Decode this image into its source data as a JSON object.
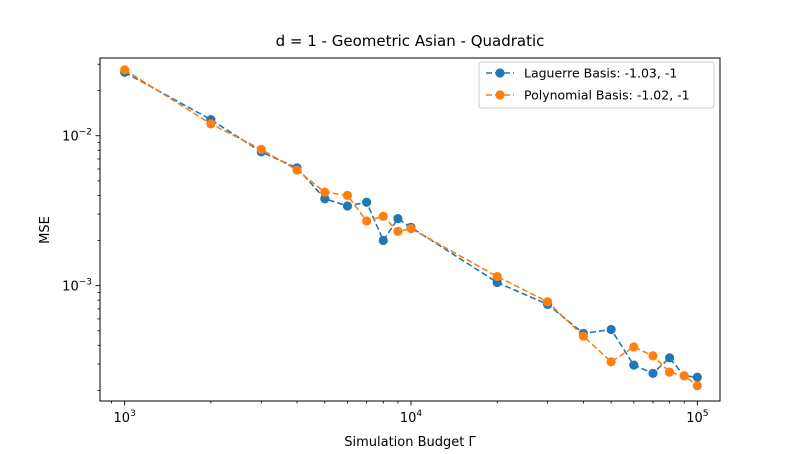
{
  "chart_data": {
    "type": "line",
    "title": "d = 1 - Geometric Asian - Quadratic",
    "xlabel": "Simulation Budget Γ",
    "ylabel": "MSE",
    "xscale": "log",
    "yscale": "log",
    "xlim": [
      820,
      120000
    ],
    "ylim": [
      0.00017,
      0.033
    ],
    "grid": false,
    "legend_placement": "top-right",
    "x_ticks": [
      {
        "value": 1000,
        "base": "10",
        "exp": "3"
      },
      {
        "value": 10000,
        "base": "10",
        "exp": "4"
      },
      {
        "value": 100000,
        "base": "10",
        "exp": "5"
      }
    ],
    "y_ticks": [
      {
        "value": 0.001,
        "base": "10",
        "exp": "−3"
      },
      {
        "value": 0.01,
        "base": "10",
        "exp": "−2"
      }
    ],
    "x": [
      1000,
      2000,
      3000,
      4000,
      5000,
      6000,
      7000,
      8000,
      9000,
      10000,
      20000,
      30000,
      40000,
      50000,
      60000,
      70000,
      80000,
      90000,
      100000
    ],
    "series": [
      {
        "name": "Laguerre Basis: -1.03, -1",
        "color": "#1f77b4",
        "values": [
          0.0265,
          0.0128,
          0.0078,
          0.0061,
          0.0038,
          0.0034,
          0.0036,
          0.002,
          0.0028,
          0.00245,
          0.00105,
          0.00075,
          0.00048,
          0.00051,
          0.000295,
          0.00026,
          0.00033,
          0.00025,
          0.000245
        ]
      },
      {
        "name": "Polynomial Basis: -1.02, -1",
        "color": "#ff7f0e",
        "values": [
          0.0275,
          0.012,
          0.0081,
          0.0059,
          0.0042,
          0.004,
          0.0027,
          0.0029,
          0.0023,
          0.0024,
          0.00115,
          0.00078,
          0.00046,
          0.00031,
          0.00039,
          0.00034,
          0.000265,
          0.00025,
          0.000215
        ]
      }
    ]
  }
}
